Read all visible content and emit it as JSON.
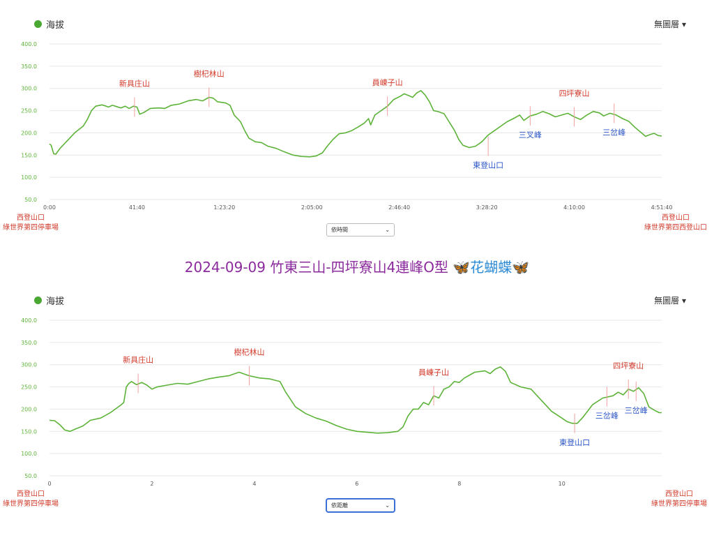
{
  "page_title": {
    "text": "2024-09-09 竹東三山-四坪寮山4連峰O型 ",
    "emoji": "🦋花蝴蝶🦋"
  },
  "charts_ui": [
    {
      "legend": "海拔",
      "layer_menu": "無圖層 ▾",
      "start_label": [
        "西登山口",
        "綠世界第四停車場"
      ],
      "end_label": [
        "西登山口",
        "綠世界第四西登山口"
      ],
      "select_value": "依時間",
      "select_arrow": "⌄"
    },
    {
      "legend": "海拔",
      "layer_menu": "無圖層 ▾",
      "start_label": [
        "西登山口",
        "綠世界第四停車場"
      ],
      "end_label": [
        "西登山口",
        "綠世界第四停車場"
      ],
      "select_value": "依距離",
      "select_arrow": "⌄"
    }
  ],
  "colors": {
    "line": "#5cb338",
    "grid": "#e6e6e6",
    "ytick": "#5cb338",
    "peak_red": "#d23a2a",
    "peak_blue": "#2a55c8",
    "marker": "#f0a0a0"
  },
  "chart_data": [
    {
      "type": "line",
      "series": [
        {
          "values": [
            [
              0,
              175
            ],
            [
              0.8,
              172
            ],
            [
              2,
              153
            ],
            [
              3,
              152
            ],
            [
              5,
              165
            ],
            [
              8,
              180
            ],
            [
              12,
              200
            ],
            [
              16,
              215
            ],
            [
              18,
              230
            ],
            [
              20,
              250
            ],
            [
              22,
              260
            ],
            [
              25,
              263
            ],
            [
              27,
              260
            ],
            [
              28,
              258
            ],
            [
              30,
              262
            ],
            [
              32,
              259
            ],
            [
              34,
              256
            ],
            [
              36,
              260
            ],
            [
              38,
              255
            ],
            [
              40,
              260
            ],
            [
              41.7,
              258
            ],
            [
              43,
              242
            ],
            [
              45,
              246
            ],
            [
              48,
              255
            ],
            [
              52,
              256
            ],
            [
              55,
              255
            ],
            [
              58,
              262
            ],
            [
              62,
              265
            ],
            [
              66,
              272
            ],
            [
              70,
              275
            ],
            [
              73,
              272
            ],
            [
              76,
              280
            ],
            [
              78,
              278
            ],
            [
              80,
              270
            ],
            [
              84,
              267
            ],
            [
              86,
              262
            ],
            [
              88,
              240
            ],
            [
              91,
              225
            ],
            [
              93,
              205
            ],
            [
              95,
              188
            ],
            [
              98,
              180
            ],
            [
              101,
              178
            ],
            [
              104,
              170
            ],
            [
              108,
              165
            ],
            [
              112,
              157
            ],
            [
              116,
              150
            ],
            [
              120,
              147
            ],
            [
              124,
              146
            ],
            [
              127,
              148
            ],
            [
              130,
              155
            ],
            [
              132,
              168
            ],
            [
              135,
              185
            ],
            [
              138,
              198
            ],
            [
              141,
              200
            ],
            [
              144,
              205
            ],
            [
              147,
              213
            ],
            [
              150,
              222
            ],
            [
              152,
              232
            ],
            [
              153,
              218
            ],
            [
              155,
              240
            ],
            [
              158,
              250
            ],
            [
              161,
              260
            ],
            [
              164,
              275
            ],
            [
              167,
              282
            ],
            [
              169,
              288
            ],
            [
              171,
              284
            ],
            [
              173,
              280
            ],
            [
              175,
              290
            ],
            [
              177,
              295
            ],
            [
              179,
              285
            ],
            [
              181,
              270
            ],
            [
              183,
              250
            ],
            [
              185,
              248
            ],
            [
              188,
              243
            ],
            [
              191,
              220
            ],
            [
              193,
              205
            ],
            [
              195,
              185
            ],
            [
              197,
              172
            ],
            [
              200,
              167
            ],
            [
              203,
              170
            ],
            [
              206,
              180
            ],
            [
              209,
              195
            ],
            [
              212,
              205
            ],
            [
              215,
              215
            ],
            [
              218,
              225
            ],
            [
              221,
              232
            ],
            [
              224,
              240
            ],
            [
              226,
              228
            ],
            [
              229,
              238
            ],
            [
              232,
              242
            ],
            [
              235,
              248
            ],
            [
              238,
              243
            ],
            [
              241,
              236
            ],
            [
              244,
              240
            ],
            [
              247,
              244
            ],
            [
              250,
              236
            ],
            [
              253,
              230
            ],
            [
              256,
              240
            ],
            [
              259,
              248
            ],
            [
              262,
              245
            ],
            [
              264,
              238
            ],
            [
              267,
              244
            ],
            [
              270,
              240
            ],
            [
              273,
              232
            ],
            [
              276,
              226
            ],
            [
              279,
              212
            ],
            [
              282,
              200
            ],
            [
              284,
              192
            ],
            [
              286,
              196
            ],
            [
              288,
              199
            ],
            [
              290,
              194
            ],
            [
              291.67,
              193
            ]
          ]
        }
      ],
      "x_ticks": [
        "0:00",
        "41:40",
        "1:23:20",
        "2:05:00",
        "2:46:40",
        "3:28:20",
        "4:10:00",
        "4:51:40"
      ],
      "xlim_minutes": [
        0,
        291.67
      ],
      "ylim": [
        50,
        400
      ],
      "y_ticks": [
        "50.0",
        "100.0",
        "150.0",
        "200.0",
        "250.0",
        "300.0",
        "350.0",
        "400.0"
      ],
      "peaks": [
        {
          "label": "新具庄山",
          "x": 40.5,
          "y": 258,
          "color": "red",
          "pos": "above"
        },
        {
          "label": "樹杞林山",
          "x": 76,
          "y": 280,
          "color": "red",
          "pos": "above"
        },
        {
          "label": "員崠子山",
          "x": 161,
          "y": 260,
          "color": "red",
          "pos": "above"
        },
        {
          "label": "東登山口",
          "x": 209,
          "y": 170,
          "color": "blue",
          "pos": "below"
        },
        {
          "label": "三叉峰",
          "x": 229,
          "y": 238,
          "color": "blue",
          "pos": "below"
        },
        {
          "label": "四坪寮山",
          "x": 250,
          "y": 236,
          "color": "red",
          "pos": "above"
        },
        {
          "label": "三岔峰",
          "x": 269,
          "y": 244,
          "color": "blue",
          "pos": "below"
        }
      ]
    },
    {
      "type": "line",
      "series": [
        {
          "values": [
            [
              0,
              175
            ],
            [
              0.1,
              174
            ],
            [
              0.2,
              165
            ],
            [
              0.3,
              153
            ],
            [
              0.4,
              150
            ],
            [
              0.5,
              155
            ],
            [
              0.65,
              162
            ],
            [
              0.8,
              175
            ],
            [
              1.0,
              180
            ],
            [
              1.2,
              193
            ],
            [
              1.4,
              210
            ],
            [
              1.45,
              215
            ],
            [
              1.5,
              250
            ],
            [
              1.55,
              258
            ],
            [
              1.6,
              262
            ],
            [
              1.7,
              255
            ],
            [
              1.8,
              260
            ],
            [
              1.9,
              254
            ],
            [
              2.0,
              245
            ],
            [
              2.1,
              250
            ],
            [
              2.3,
              254
            ],
            [
              2.5,
              258
            ],
            [
              2.7,
              256
            ],
            [
              2.9,
              262
            ],
            [
              3.1,
              268
            ],
            [
              3.3,
              272
            ],
            [
              3.5,
              275
            ],
            [
              3.7,
              283
            ],
            [
              3.9,
              275
            ],
            [
              4.1,
              270
            ],
            [
              4.3,
              268
            ],
            [
              4.5,
              262
            ],
            [
              4.6,
              240
            ],
            [
              4.8,
              205
            ],
            [
              5.0,
              190
            ],
            [
              5.2,
              180
            ],
            [
              5.4,
              173
            ],
            [
              5.6,
              163
            ],
            [
              5.8,
              155
            ],
            [
              6.0,
              150
            ],
            [
              6.2,
              148
            ],
            [
              6.4,
              146
            ],
            [
              6.6,
              147
            ],
            [
              6.8,
              150
            ],
            [
              6.9,
              160
            ],
            [
              7.0,
              185
            ],
            [
              7.1,
              200
            ],
            [
              7.2,
              200
            ],
            [
              7.3,
              215
            ],
            [
              7.4,
              210
            ],
            [
              7.5,
              230
            ],
            [
              7.6,
              225
            ],
            [
              7.7,
              245
            ],
            [
              7.8,
              250
            ],
            [
              7.9,
              262
            ],
            [
              8.0,
              260
            ],
            [
              8.1,
              270
            ],
            [
              8.3,
              283
            ],
            [
              8.5,
              286
            ],
            [
              8.6,
              280
            ],
            [
              8.7,
              290
            ],
            [
              8.8,
              295
            ],
            [
              8.9,
              285
            ],
            [
              9.0,
              260
            ],
            [
              9.2,
              250
            ],
            [
              9.4,
              245
            ],
            [
              9.6,
              220
            ],
            [
              9.8,
              195
            ],
            [
              10.0,
              180
            ],
            [
              10.1,
              172
            ],
            [
              10.2,
              168
            ],
            [
              10.3,
              168
            ],
            [
              10.4,
              180
            ],
            [
              10.6,
              210
            ],
            [
              10.8,
              225
            ],
            [
              11.0,
              230
            ],
            [
              11.1,
              238
            ],
            [
              11.2,
              232
            ],
            [
              11.3,
              245
            ],
            [
              11.4,
              240
            ],
            [
              11.5,
              248
            ],
            [
              11.6,
              235
            ],
            [
              11.7,
              205
            ],
            [
              11.8,
              198
            ],
            [
              11.9,
              192
            ],
            [
              11.95,
              192
            ]
          ]
        }
      ],
      "x_ticks": [
        "0",
        "2",
        "4",
        "6",
        "8",
        "10"
      ],
      "xlim": [
        0,
        11.95
      ],
      "ylim": [
        50,
        400
      ],
      "y_ticks": [
        "50.0",
        "100.0",
        "150.0",
        "200.0",
        "250.0",
        "300.0",
        "350.0",
        "400.0"
      ],
      "peaks": [
        {
          "label": "新具庄山",
          "x": 1.73,
          "y": 258,
          "color": "red",
          "pos": "above"
        },
        {
          "label": "樹杞林山",
          "x": 3.9,
          "y": 275,
          "color": "red",
          "pos": "above"
        },
        {
          "label": "員崠子山",
          "x": 7.5,
          "y": 230,
          "color": "red",
          "pos": "above"
        },
        {
          "label": "東登山口",
          "x": 10.25,
          "y": 168,
          "color": "blue",
          "pos": "below"
        },
        {
          "label": "三岔峰",
          "x": 10.88,
          "y": 228,
          "color": "blue",
          "pos": "below"
        },
        {
          "label": "四坪寮山",
          "x": 11.3,
          "y": 245,
          "color": "red",
          "pos": "above"
        },
        {
          "label": "三岔峰",
          "x": 11.45,
          "y": 240,
          "color": "blue",
          "pos": "below"
        }
      ]
    }
  ]
}
